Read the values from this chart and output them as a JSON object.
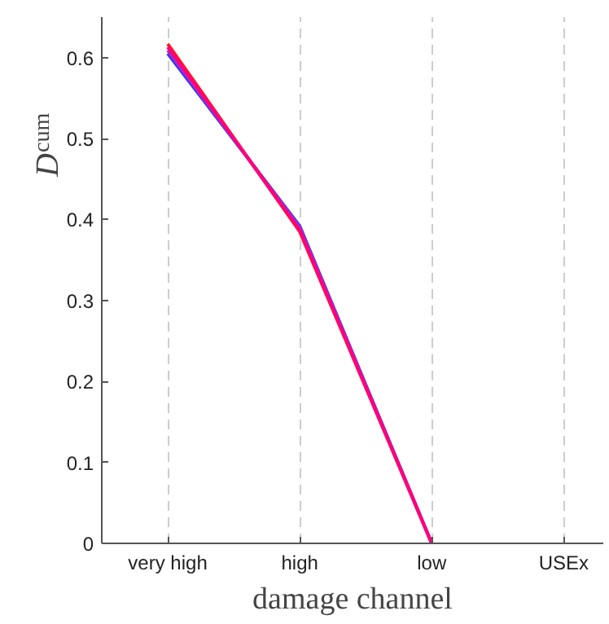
{
  "chart_data": {
    "type": "line",
    "xlabel": "damage channel",
    "ylabel": "D$_{cum}$",
    "categories": [
      "very high",
      "high",
      "low",
      "USEx"
    ],
    "series": [
      {
        "color": "#3333ff",
        "values": [
          0.605,
          0.392,
          0,
          null
        ]
      },
      {
        "color": "#9933cc",
        "values": [
          0.609,
          0.39,
          0,
          null
        ]
      },
      {
        "color": "#ff1a1a",
        "values": [
          0.617,
          0.385,
          0,
          null
        ]
      },
      {
        "color": "#ff0080",
        "values": [
          0.613,
          0.387,
          0,
          null
        ]
      }
    ],
    "ylim": [
      0,
      0.65
    ],
    "yticks": [
      0,
      0.1,
      0.2,
      0.3,
      0.4,
      0.5,
      0.6
    ],
    "grid": "x",
    "marker": "none",
    "line_style": "solid"
  }
}
